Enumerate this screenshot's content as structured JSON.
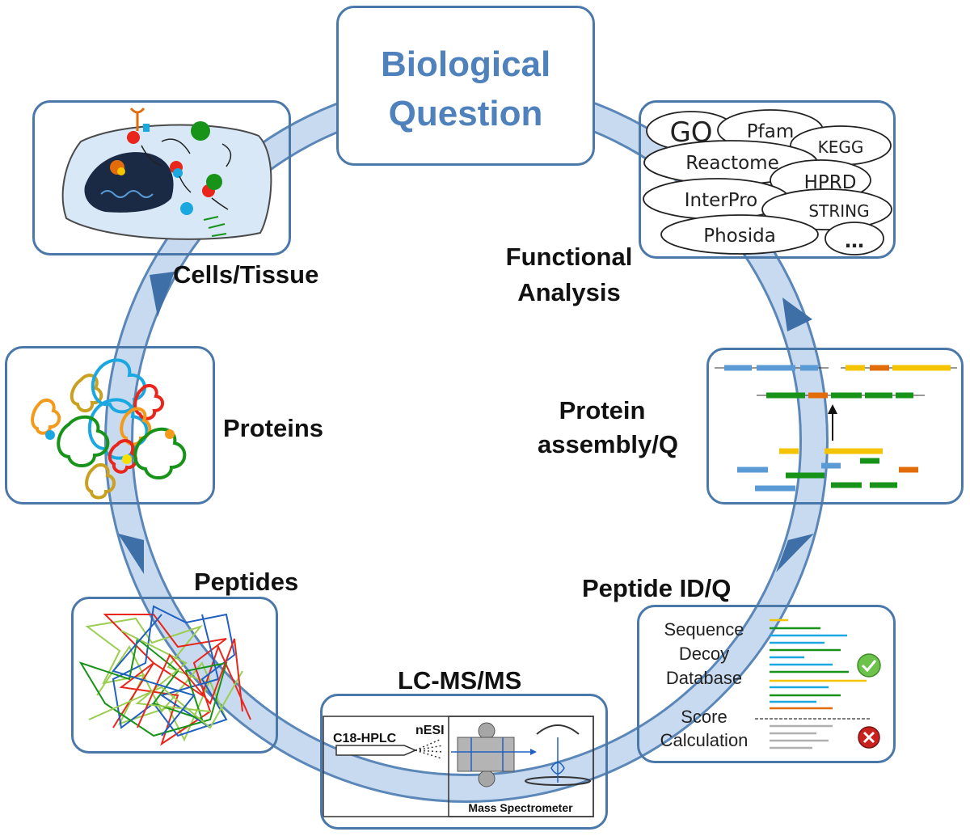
{
  "title": "Biological Question",
  "stages": {
    "cells": "Cells/Tissue",
    "proteins": "Proteins",
    "peptides": "Peptides",
    "lcms": "LC-MS/MS",
    "peptide_id": "Peptide ID/Q",
    "assembly_line1": "Protein",
    "assembly_line2": "assembly/Q",
    "functional_line1": "Functional",
    "functional_line2": "Analysis"
  },
  "databases": [
    "GO",
    "Pfam",
    "KEGG",
    "Reactome",
    "HPRD",
    "InterPro",
    "STRING",
    "Phosida",
    "…"
  ],
  "lcms": {
    "column": "C18-HPLC",
    "source": "nESI",
    "instrument": "Mass Spectrometer"
  },
  "search": {
    "line1": "Sequence",
    "line2": "Decoy",
    "line3": "Database",
    "line4": "Score",
    "line5": "Calculation"
  },
  "colors": {
    "ring": "#c8daf0",
    "ring_border": "#5a87b8",
    "arrow": "#3e6fa6",
    "box_border": "#4a78a8",
    "title": "#4f81bd",
    "blue": "#5b9bd5",
    "green": "#17931a",
    "orange": "#e36c0a",
    "yellow": "#f5c400",
    "red": "#e8261b",
    "olive": "#c9a020",
    "cyan": "#1ba8e0"
  }
}
